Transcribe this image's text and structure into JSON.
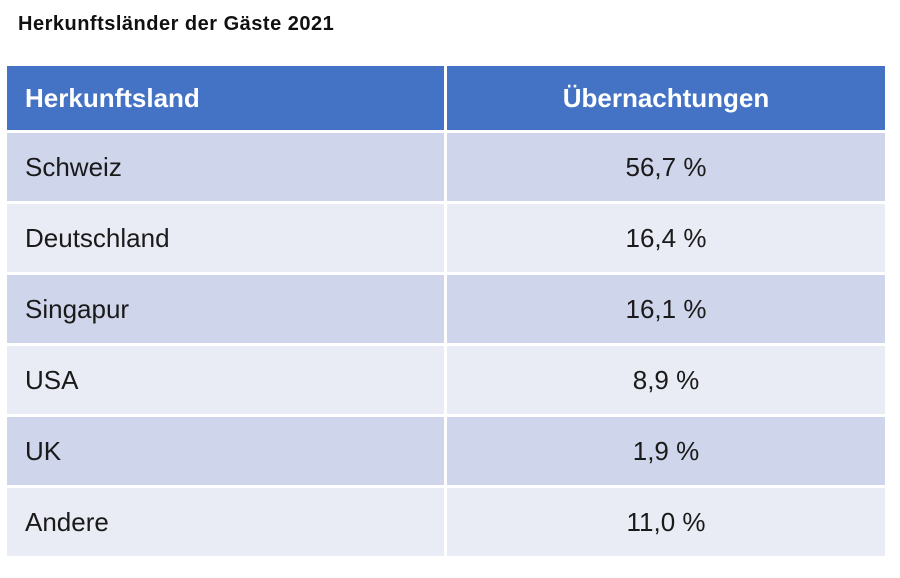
{
  "chart_data": {
    "type": "table",
    "title": "Herkunftsländer der Gäste 2021",
    "columns": [
      "Herkunftsland",
      "Übernachtungen"
    ],
    "rows": [
      {
        "country": "Schweiz",
        "share": "56,7 %",
        "value": 56.7
      },
      {
        "country": "Deutschland",
        "share": "16,4 %",
        "value": 16.4
      },
      {
        "country": "Singapur",
        "share": "16,1 %",
        "value": 16.1
      },
      {
        "country": "USA",
        "share": "8,9 %",
        "value": 8.9
      },
      {
        "country": "UK",
        "share": "1,9 %",
        "value": 1.9
      },
      {
        "country": "Andere",
        "share": "11,0 %",
        "value": 11.0
      }
    ],
    "colors": {
      "header": "#4472c4",
      "row_odd": "#cfd5ea",
      "row_even": "#e9ebf5"
    }
  }
}
